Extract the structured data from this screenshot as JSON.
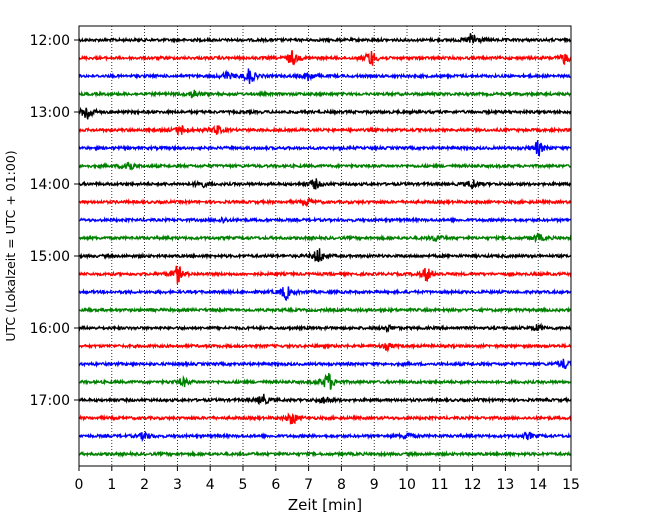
{
  "chart_data": {
    "type": "line",
    "title": "",
    "xlabel": "Zeit  [min]",
    "ylabel": "UTC (Lokalzeit = UTC + 01:00)",
    "xlim": [
      0,
      15
    ],
    "x_ticks": [
      0,
      1,
      2,
      3,
      4,
      5,
      6,
      7,
      8,
      9,
      10,
      11,
      12,
      13,
      14,
      15
    ],
    "x_tick_labels": [
      "0",
      "1",
      "2",
      "3",
      "4",
      "5",
      "6",
      "7",
      "8",
      "9",
      "10",
      "11",
      "12",
      "13",
      "14",
      "15"
    ],
    "y_tick_labels": [
      "12:00",
      "13:00",
      "14:00",
      "15:00",
      "16:00",
      "17:00"
    ],
    "y_tick_rows": [
      0,
      4,
      8,
      12,
      16,
      20
    ],
    "grid": {
      "x": "dotted-vertical",
      "y": false
    },
    "color_cycle": [
      "#000000",
      "#ff0000",
      "#0000ff",
      "#008000"
    ],
    "series": [
      {
        "start": "12:00",
        "color": "#000000",
        "events": [
          {
            "t": 12.0,
            "amp": 1.0
          }
        ]
      },
      {
        "start": "12:15",
        "color": "#ff0000",
        "events": [
          {
            "t": 6.5,
            "amp": 0.9
          },
          {
            "t": 8.9,
            "amp": 1.0
          },
          {
            "t": 14.8,
            "amp": 0.7
          }
        ]
      },
      {
        "start": "12:30",
        "color": "#0000ff",
        "events": [
          {
            "t": 4.5,
            "amp": 0.5
          },
          {
            "t": 5.2,
            "amp": 1.0
          },
          {
            "t": 7.0,
            "amp": 0.6
          }
        ]
      },
      {
        "start": "12:45",
        "color": "#008000",
        "events": [
          {
            "t": 3.5,
            "amp": 0.5
          }
        ]
      },
      {
        "start": "13:00",
        "color": "#000000",
        "events": [
          {
            "t": 0.25,
            "amp": 1.1
          }
        ]
      },
      {
        "start": "13:15",
        "color": "#ff0000",
        "events": [
          {
            "t": 3.1,
            "amp": 0.6
          },
          {
            "t": 4.2,
            "amp": 0.6
          }
        ]
      },
      {
        "start": "13:30",
        "color": "#0000ff",
        "events": [
          {
            "t": 14.0,
            "amp": 0.9
          }
        ]
      },
      {
        "start": "13:45",
        "color": "#008000",
        "events": [
          {
            "t": 1.5,
            "amp": 0.8
          }
        ]
      },
      {
        "start": "14:00",
        "color": "#000000",
        "events": [
          {
            "t": 3.7,
            "amp": 0.5
          },
          {
            "t": 7.2,
            "amp": 0.6
          },
          {
            "t": 12.0,
            "amp": 0.6
          }
        ]
      },
      {
        "start": "14:15",
        "color": "#ff0000",
        "events": [
          {
            "t": 7.0,
            "amp": 0.4
          }
        ]
      },
      {
        "start": "14:30",
        "color": "#0000ff",
        "events": [
          {
            "t": 4.4,
            "amp": 0.3
          }
        ]
      },
      {
        "start": "14:45",
        "color": "#008000",
        "events": [
          {
            "t": 10.9,
            "amp": 0.4
          },
          {
            "t": 14.0,
            "amp": 0.5
          }
        ]
      },
      {
        "start": "15:00",
        "color": "#000000",
        "events": [
          {
            "t": 7.3,
            "amp": 1.0
          }
        ]
      },
      {
        "start": "15:15",
        "color": "#ff0000",
        "events": [
          {
            "t": 3.0,
            "amp": 1.1
          },
          {
            "t": 10.6,
            "amp": 0.9
          }
        ]
      },
      {
        "start": "15:30",
        "color": "#0000ff",
        "events": [
          {
            "t": 6.3,
            "amp": 0.9
          }
        ]
      },
      {
        "start": "15:45",
        "color": "#008000",
        "events": []
      },
      {
        "start": "16:00",
        "color": "#000000",
        "events": [
          {
            "t": 9.4,
            "amp": 0.4
          },
          {
            "t": 14.0,
            "amp": 0.4
          }
        ]
      },
      {
        "start": "16:15",
        "color": "#ff0000",
        "events": [
          {
            "t": 9.4,
            "amp": 0.4
          }
        ]
      },
      {
        "start": "16:30",
        "color": "#0000ff",
        "events": [
          {
            "t": 14.8,
            "amp": 0.6
          }
        ]
      },
      {
        "start": "16:45",
        "color": "#008000",
        "events": [
          {
            "t": 3.2,
            "amp": 0.5
          },
          {
            "t": 7.6,
            "amp": 1.2
          }
        ]
      },
      {
        "start": "17:00",
        "color": "#000000",
        "events": [
          {
            "t": 5.6,
            "amp": 0.7
          },
          {
            "t": 7.5,
            "amp": 0.5
          }
        ]
      },
      {
        "start": "17:15",
        "color": "#ff0000",
        "events": [
          {
            "t": 6.5,
            "amp": 0.8
          }
        ]
      },
      {
        "start": "17:30",
        "color": "#0000ff",
        "events": [
          {
            "t": 2.0,
            "amp": 0.5
          },
          {
            "t": 10.0,
            "amp": 0.4
          },
          {
            "t": 13.7,
            "amp": 0.4
          }
        ]
      },
      {
        "start": "17:45",
        "color": "#008000",
        "events": []
      }
    ]
  }
}
